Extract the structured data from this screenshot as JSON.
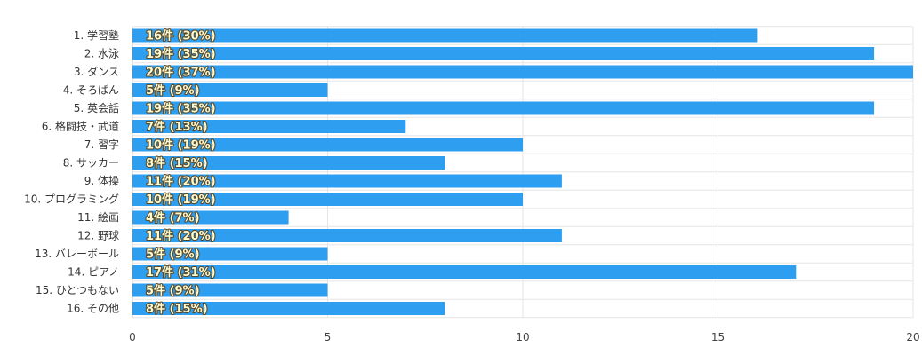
{
  "chart_data": {
    "type": "bar",
    "orientation": "horizontal",
    "categories": [
      "1. 学習塾",
      "2. 水泳",
      "3. ダンス",
      "4. そろばん",
      "5. 英会話",
      "6. 格闘技・武道",
      "7. 習字",
      "8. サッカー",
      "9. 体操",
      "10. プログラミング",
      "11. 絵画",
      "12. 野球",
      "13. バレーボール",
      "14. ピアノ",
      "15. ひとつもない",
      "16. その他"
    ],
    "values": [
      16,
      19,
      20,
      5,
      19,
      7,
      10,
      8,
      11,
      10,
      4,
      11,
      5,
      17,
      5,
      8
    ],
    "data_labels": [
      "16件 (30%)",
      "19件 (35%)",
      "20件 (37%)",
      "5件 (9%)",
      "19件 (35%)",
      "7件 (13%)",
      "10件 (19%)",
      "8件 (15%)",
      "11件 (20%)",
      "10件 (19%)",
      "4件 (7%)",
      "11件 (20%)",
      "5件 (9%)",
      "17件 (31%)",
      "5件 (9%)",
      "8件 (15%)"
    ],
    "xlim": [
      0,
      20
    ],
    "xticks": [
      0,
      5,
      10,
      15,
      20
    ],
    "grid": true,
    "colors": {
      "bar": "#2e9ef0",
      "grid": "#e6e6e6",
      "axis": "#cccccc"
    }
  }
}
